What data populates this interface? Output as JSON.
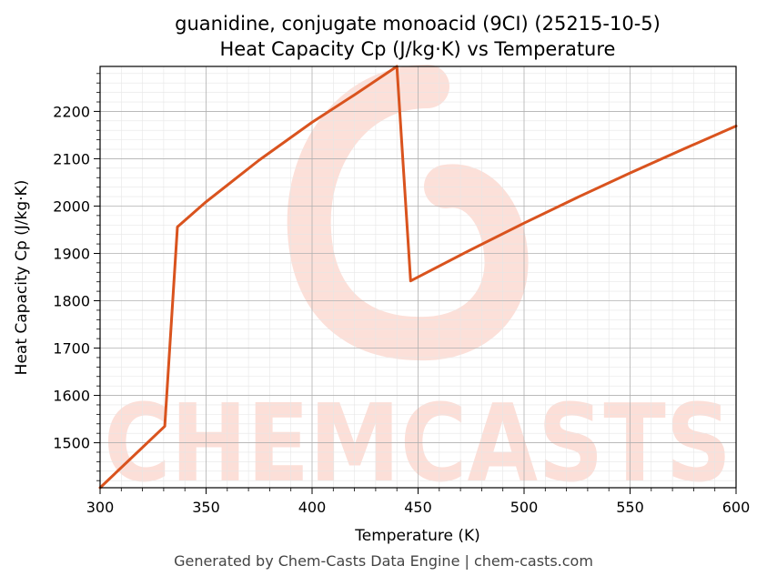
{
  "chart_data": {
    "type": "line",
    "title": "guanidine, conjugate monoacid (9CI) (25215-10-5)",
    "subtitle": "Heat Capacity Cp (J/kg·K) vs Temperature",
    "xlabel": "Temperature (K)",
    "ylabel": "Heat Capacity Cp (J/kg·K)",
    "xlim": [
      300,
      600
    ],
    "ylim": [
      1405,
      2295
    ],
    "x_ticks": [
      300,
      350,
      400,
      450,
      500,
      550,
      600
    ],
    "y_ticks": [
      1500,
      1600,
      1700,
      1800,
      1900,
      2000,
      2100,
      2200
    ],
    "grid": true,
    "series": [
      {
        "color": "#d9531e",
        "x": [
          300,
          330.5,
          336.5,
          350,
          375,
          400,
          420,
          440,
          446.5,
          475,
          500,
          525,
          550,
          575,
          600
        ],
        "y": [
          1405,
          1535,
          1956,
          2009,
          2097,
          2177,
          2235,
          2295,
          1842,
          1908,
          1964,
          2018,
          2070,
          2120,
          2169
        ]
      }
    ]
  },
  "watermark": "CHEMCASTS",
  "footer": "Generated by Chem-Casts Data Engine | chem-casts.com"
}
